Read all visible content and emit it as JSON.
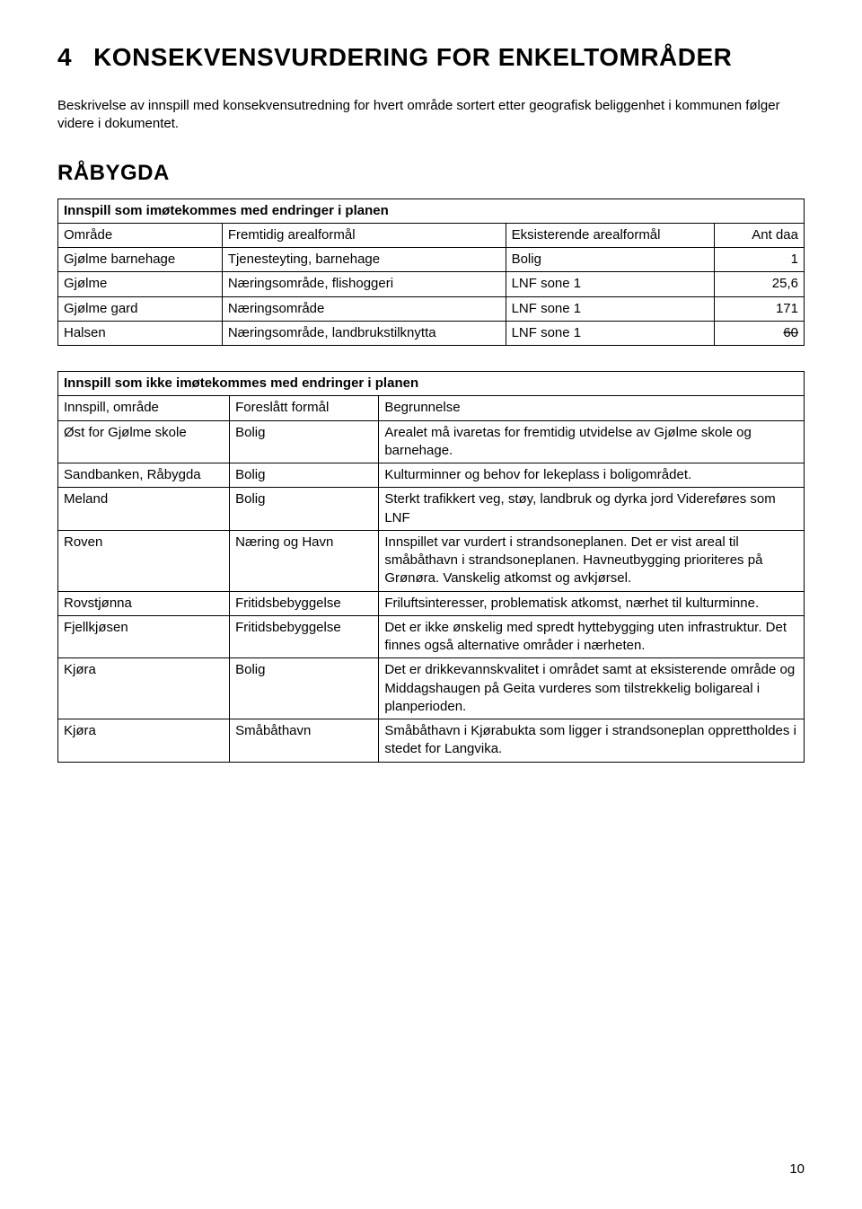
{
  "heading": {
    "number": "4",
    "title": "KONSEKVENSVURDERING FOR ENKELTOMRÅDER"
  },
  "intro": "Beskrivelse av innspill med konsekvensutredning for hvert område sortert etter geografisk beliggenhet i kommunen følger videre i dokumentet.",
  "section": "RÅBYGDA",
  "table1": {
    "title": "Innspill som imøtekommes med endringer i planen",
    "headers": [
      "Område",
      "Fremtidig arealformål",
      "Eksisterende arealformål",
      "Ant daa"
    ],
    "rows": [
      {
        "c": [
          "Gjølme barnehage",
          "Tjenesteyting, barnehage",
          "Bolig",
          "1"
        ],
        "strike": false
      },
      {
        "c": [
          "Gjølme",
          "Næringsområde, flishoggeri",
          "LNF sone 1",
          "25,6"
        ],
        "strike": false
      },
      {
        "c": [
          "Gjølme gard",
          "Næringsområde",
          "LNF sone 1",
          "171"
        ],
        "strike": false
      },
      {
        "c": [
          "Halsen",
          "Næringsområde, landbrukstilknytta",
          "LNF sone 1",
          "60"
        ],
        "strike": true
      }
    ]
  },
  "table2": {
    "title": "Innspill som ikke imøtekommes med endringer i planen",
    "headers": [
      "Innspill, område",
      "Foreslått formål",
      "Begrunnelse"
    ],
    "rows": [
      [
        "Øst for Gjølme skole",
        "Bolig",
        "Arealet må ivaretas for fremtidig utvidelse av Gjølme skole og barnehage."
      ],
      [
        "Sandbanken, Råbygda",
        "Bolig",
        "Kulturminner og behov for lekeplass i boligområdet."
      ],
      [
        "Meland",
        "Bolig",
        "Sterkt trafikkert veg, støy, landbruk og dyrka jord Videreføres som LNF"
      ],
      [
        "Roven",
        "Næring og Havn",
        "Innspillet var vurdert i strandsoneplanen. Det er vist areal til småbåthavn i strandsoneplanen. Havneutbygging prioriteres på Grønøra. Vanskelig atkomst og avkjørsel."
      ],
      [
        "Rovstjønna",
        "Fritidsbebyggelse",
        "Friluftsinteresser, problematisk atkomst, nærhet til kulturminne."
      ],
      [
        "Fjellkjøsen",
        "Fritidsbebyggelse",
        "Det er ikke ønskelig med spredt hyttebygging uten infrastruktur. Det finnes også alternative områder i nærheten."
      ],
      [
        "Kjøra",
        "Bolig",
        "Det er drikkevannskvalitet i området samt at eksisterende område og Middagshaugen på Geita vurderes som tilstrekkelig boligareal i planperioden."
      ],
      [
        "Kjøra",
        "Småbåthavn",
        "Småbåthavn i Kjørabukta som ligger i strandsoneplan opprettholdes i stedet for Langvika."
      ]
    ]
  },
  "pageNumber": "10"
}
